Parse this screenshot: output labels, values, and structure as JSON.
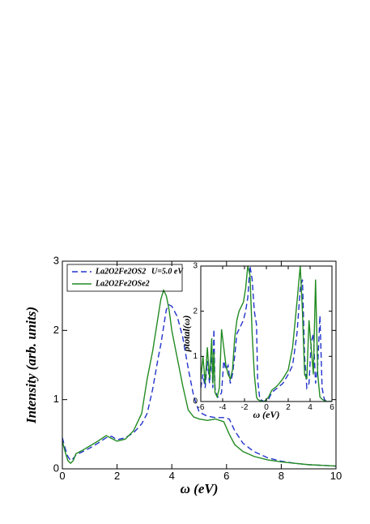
{
  "chart_data": [
    {
      "type": "line",
      "x_label": "ω (eV)",
      "y_label": "Intensity (arb. units)",
      "annotation": "U=5.0 eV",
      "xlim": [
        0,
        10
      ],
      "xticks": [
        0,
        2,
        4,
        6,
        8,
        10
      ],
      "ylim": [
        0,
        3
      ],
      "yticks": [
        0,
        1,
        2,
        3
      ],
      "x": [
        0,
        0.1,
        0.2,
        0.3,
        0.4,
        0.5,
        0.7,
        1,
        1.3,
        1.6,
        1.8,
        2,
        2.3,
        2.6,
        2.9,
        3.1,
        3.3,
        3.5,
        3.6,
        3.7,
        3.8,
        3.9,
        4,
        4.2,
        4.4,
        4.6,
        4.8,
        5,
        5.3,
        5.6,
        5.9,
        6.1,
        6.3,
        6.6,
        7,
        7.5,
        8,
        8.5,
        9,
        9.5,
        10
      ],
      "series": [
        {
          "name": "La2O2Fe2OS2",
          "color": "#2233cc",
          "dashed": true,
          "values": [
            0.45,
            0.3,
            0.18,
            0.12,
            0.15,
            0.2,
            0.24,
            0.3,
            0.37,
            0.45,
            0.47,
            0.42,
            0.45,
            0.52,
            0.65,
            0.8,
            1.15,
            1.6,
            1.8,
            2.05,
            2.3,
            2.37,
            2.35,
            2.2,
            1.9,
            1.45,
            1.05,
            0.82,
            0.76,
            0.74,
            0.74,
            0.72,
            0.55,
            0.37,
            0.25,
            0.16,
            0.11,
            0.08,
            0.06,
            0.05,
            0.04
          ]
        },
        {
          "name": "La2O2Fe2OSe2",
          "color": "#228b22",
          "dashed": false,
          "values": [
            0.4,
            0.25,
            0.12,
            0.08,
            0.12,
            0.22,
            0.26,
            0.33,
            0.4,
            0.48,
            0.44,
            0.4,
            0.43,
            0.55,
            0.8,
            1.3,
            1.7,
            2.2,
            2.45,
            2.58,
            2.5,
            2.3,
            2.0,
            1.6,
            1.2,
            0.85,
            0.75,
            0.72,
            0.7,
            0.72,
            0.68,
            0.5,
            0.35,
            0.25,
            0.18,
            0.13,
            0.1,
            0.08,
            0.06,
            0.05,
            0.04
          ]
        }
      ]
    },
    {
      "type": "line",
      "x_label": "ω (eV)",
      "y_label": "ρtotal(ω)",
      "xlim": [
        -6,
        6
      ],
      "xticks": [
        -6,
        -4,
        -2,
        0,
        2,
        4,
        6
      ],
      "ylim": [
        0,
        3
      ],
      "yticks": [
        0,
        1,
        2,
        3
      ],
      "x": [
        -6,
        -5.8,
        -5.6,
        -5.4,
        -5.2,
        -5,
        -4.9,
        -4.8,
        -4.7,
        -4.5,
        -4.3,
        -4.1,
        -3.9,
        -3.7,
        -3.5,
        -3.3,
        -3.1,
        -2.9,
        -2.7,
        -2.5,
        -2.3,
        -2.1,
        -1.9,
        -1.7,
        -1.5,
        -1.3,
        -1.1,
        -0.9,
        -0.8,
        -0.6,
        -0.2,
        0.2,
        0.5,
        1,
        1.5,
        2,
        2.4,
        2.8,
        3.1,
        3.3,
        3.5,
        3.7,
        3.9,
        4.1,
        4.3,
        4.5,
        4.7,
        4.9,
        5.1,
        5.3,
        5.5,
        6
      ],
      "series": [
        {
          "color": "#2233cc",
          "dashed": true,
          "values": [
            0.3,
            0.6,
            0.3,
            0.9,
            0.4,
            1.0,
            0.3,
            1.6,
            0.3,
            0.1,
            0.1,
            0.2,
            0.9,
            0.7,
            0.8,
            0.4,
            0.6,
            1.0,
            1.5,
            1.6,
            1.7,
            1.8,
            2.0,
            2.3,
            3.0,
            2.7,
            2.0,
            1.7,
            0.5,
            0.05,
            0,
            0.05,
            0.2,
            0.3,
            0.4,
            0.6,
            0.8,
            1.5,
            2.5,
            2.7,
            1.0,
            0.3,
            0.4,
            1.3,
            1.5,
            0.4,
            0.8,
            1.9,
            0.3,
            0.05,
            0,
            0
          ]
        },
        {
          "color": "#228b22",
          "dashed": false,
          "values": [
            0.5,
            1.0,
            0.4,
            1.2,
            0.5,
            1.4,
            0.4,
            1.1,
            0.2,
            0.1,
            0.3,
            1.6,
            1.2,
            0.8,
            0.6,
            0.5,
            0.7,
            1.4,
            1.8,
            2.0,
            2.1,
            2.2,
            2.5,
            3.0,
            2.8,
            1.5,
            0.6,
            0.1,
            0.05,
            0.02,
            0,
            0.1,
            0.25,
            0.35,
            0.5,
            0.7,
            1.2,
            2.2,
            3.0,
            2.0,
            0.6,
            0.5,
            1.8,
            1.2,
            0.6,
            2.7,
            0.6,
            0.1,
            0.05,
            0.02,
            0,
            0
          ]
        }
      ]
    }
  ]
}
